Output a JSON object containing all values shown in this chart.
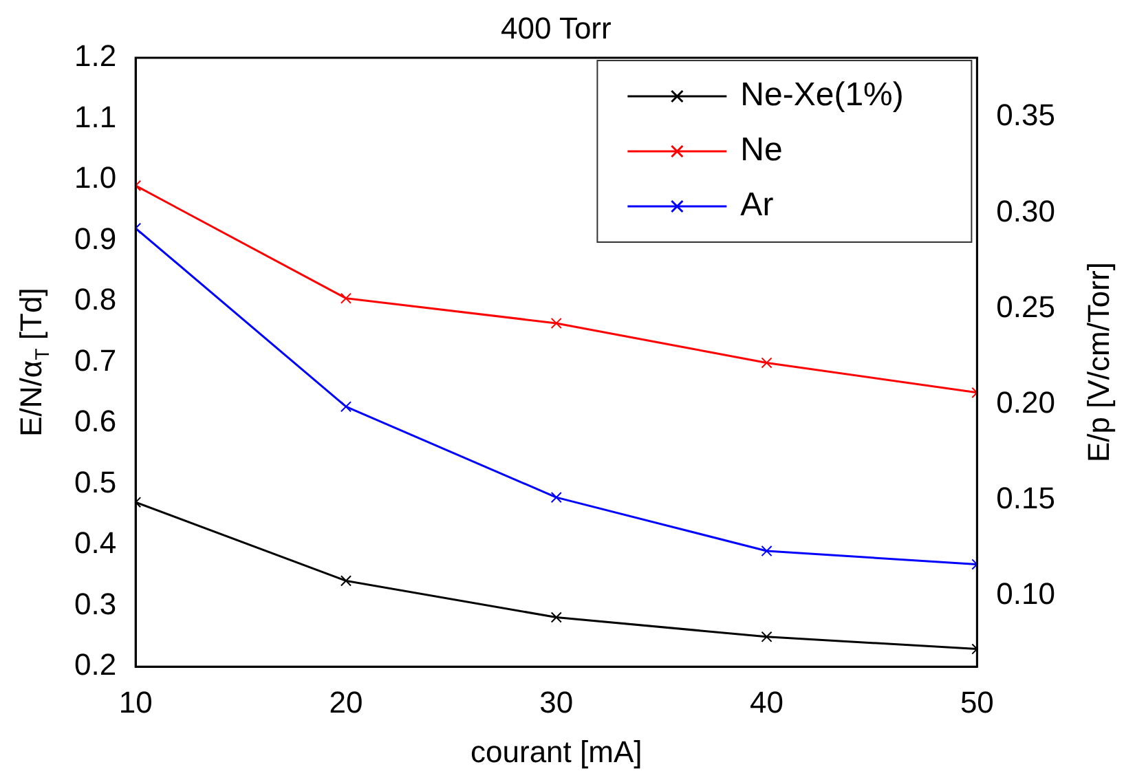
{
  "chart_data": {
    "type": "line",
    "title": "400 Torr",
    "xlabel": "courant [mA]",
    "ylabel": "E/N/α$_{T}$ [Td]",
    "y2label": "E/p [V/cm/Torr]",
    "x": [
      10,
      20,
      30,
      40,
      50
    ],
    "series": [
      {
        "name": "Ne-Xe(1%)",
        "color": "#000000",
        "values": [
          0.47,
          0.341,
          0.281,
          0.249,
          0.229
        ]
      },
      {
        "name": "Ne",
        "color": "#ff0000",
        "values": [
          0.99,
          0.805,
          0.764,
          0.699,
          0.65
        ]
      },
      {
        "name": "Ar",
        "color": "#0000ff",
        "values": [
          0.92,
          0.627,
          0.478,
          0.39,
          0.368
        ]
      }
    ],
    "xlim": [
      10,
      50
    ],
    "xticks": [
      10,
      20,
      30,
      40,
      50
    ],
    "ylim": [
      0.2,
      1.2
    ],
    "yticks": [
      {
        "value": 0.2,
        "label": "0.2"
      },
      {
        "value": 0.3,
        "label": "0.3"
      },
      {
        "value": 0.4,
        "label": "0.4"
      },
      {
        "value": 0.5,
        "label": "0.5"
      },
      {
        "value": 0.6,
        "label": "0.6"
      },
      {
        "value": 0.7,
        "label": "0.7"
      },
      {
        "value": 0.8,
        "label": "0.8"
      },
      {
        "value": 0.9,
        "label": "0.9"
      },
      {
        "value": 1.0,
        "label": "1.0"
      },
      {
        "value": 1.1,
        "label": "1.1"
      },
      {
        "value": 1.2,
        "label": "1.2"
      }
    ],
    "y2lim": [
      0.063,
      0.381
    ],
    "y2ticks": [
      {
        "value": 0.1,
        "label": "0.10"
      },
      {
        "value": 0.15,
        "label": "0.15"
      },
      {
        "value": 0.2,
        "label": "0.20"
      },
      {
        "value": 0.25,
        "label": "0.25"
      },
      {
        "value": 0.3,
        "label": "0.30"
      },
      {
        "value": 0.35,
        "label": "0.35"
      }
    ],
    "grid": false,
    "legend": "top right",
    "marker": "cross",
    "line_style": "solid"
  }
}
